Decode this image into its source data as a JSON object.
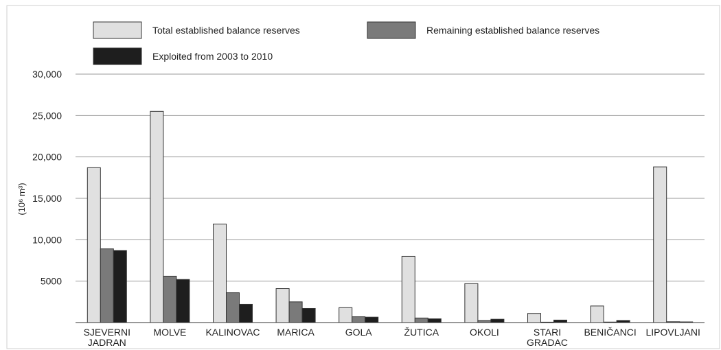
{
  "chart_data": {
    "type": "bar",
    "title": "",
    "xlabel": "",
    "ylabel": "(10⁶ m³)",
    "ylim": [
      0,
      30000
    ],
    "yticks": [
      "",
      "5000",
      "10,000",
      "15,000",
      "20,000",
      "25,000",
      "30,000"
    ],
    "ytick_values": [
      0,
      5000,
      10000,
      15000,
      20000,
      25000,
      30000
    ],
    "grid": true,
    "legend_position": "top",
    "categories": [
      [
        "SJEVERNI",
        "JADRAN"
      ],
      [
        "MOLVE"
      ],
      [
        "KALINOVAC"
      ],
      [
        "MARICA"
      ],
      [
        "GOLA"
      ],
      [
        "ŽUTICA"
      ],
      [
        "OKOLI"
      ],
      [
        "STARI",
        "GRADAC"
      ],
      [
        "BENIČANCI"
      ],
      [
        "LIPOVLJANI"
      ]
    ],
    "series": [
      {
        "name": "Total established balance reserves",
        "color": "#e0e0e0",
        "values": [
          18700,
          25500,
          11900,
          4100,
          1800,
          8000,
          4700,
          1100,
          2000,
          18800
        ]
      },
      {
        "name": "Remaining established balance reserves",
        "color": "#7a7a7a",
        "values": [
          8900,
          5600,
          3600,
          2500,
          700,
          550,
          250,
          50,
          60,
          100
        ]
      },
      {
        "name": "Exploited from 2003 to 2010",
        "color": "#1e1e1e",
        "values": [
          8700,
          5200,
          2200,
          1700,
          650,
          450,
          400,
          300,
          250,
          80
        ]
      }
    ]
  }
}
